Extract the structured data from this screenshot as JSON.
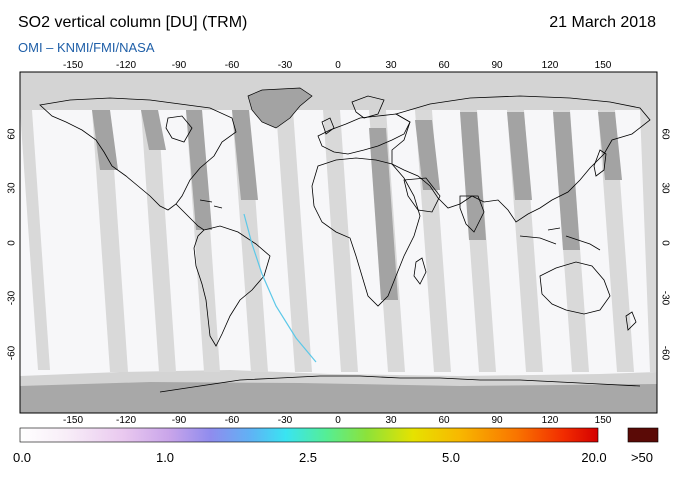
{
  "header": {
    "title": "SO2 vertical column [DU] (TRM)",
    "date": "21 March 2018",
    "credit": "OMI  –  KNMI/FMI/NASA"
  },
  "axes": {
    "lon_ticks": [
      "-150",
      "-120",
      "-90",
      "-60",
      "-30",
      "0",
      "30",
      "60",
      "90",
      "120",
      "150"
    ],
    "lat_ticks": [
      "60",
      "30",
      "0",
      "-30",
      "-60"
    ]
  },
  "colorbar": {
    "labels": [
      "0.0",
      "1.0",
      "2.5",
      "5.0",
      "20.0"
    ],
    "over_label": ">50",
    "over_color": "#5a0a06"
  },
  "colors": {
    "ocean": "#f7f7f9",
    "land_fill": "#ffffff",
    "swath_gap_dark": "#a3a3a3",
    "swath_gap_light": "#d4d4d4",
    "coastline": "#000000"
  }
}
